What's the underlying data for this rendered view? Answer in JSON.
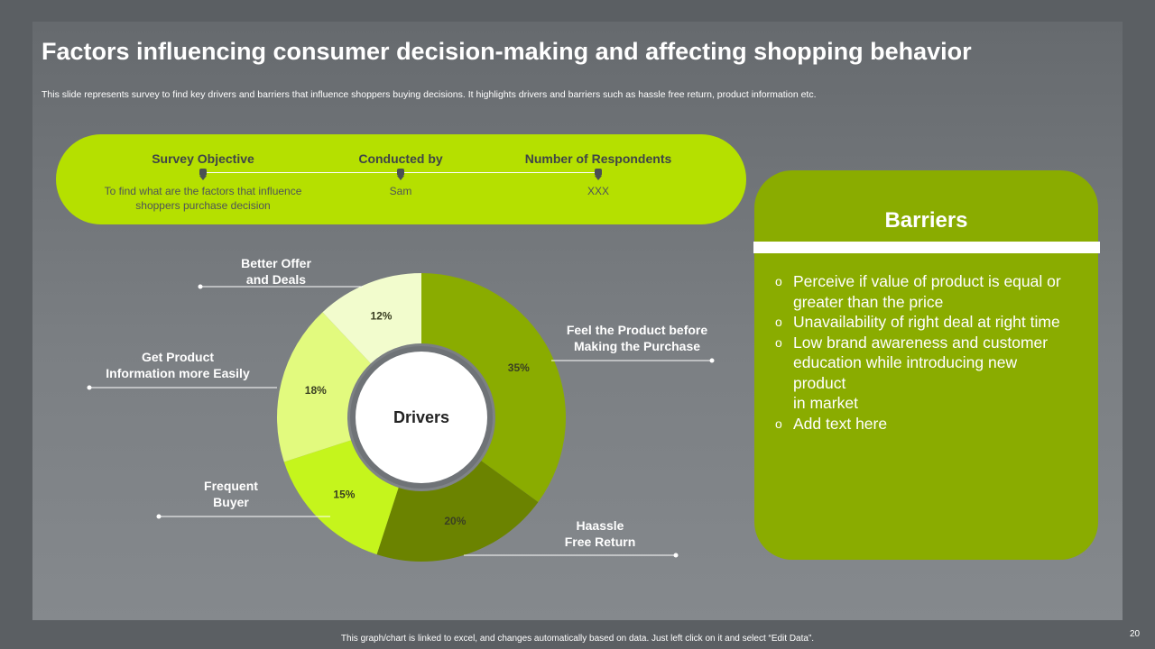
{
  "slide": {
    "title": "Factors influencing consumer decision-making and affecting shopping behavior",
    "subtitle": "This slide represents survey to find key drivers and barriers that influence shoppers buying decisions. It highlights drivers and barriers such as hassle free return, product information etc.",
    "footnote": "This graph/chart is linked to excel, and changes automatically based on data. Just left click on it and select “Edit Data”.",
    "page_number": "20"
  },
  "survey": {
    "objective_label": "Survey Objective",
    "objective_value_line1": "To find what are the factors that influence",
    "objective_value_line2": "shoppers purchase decision",
    "conducted_label": "Conducted by",
    "conducted_value": "Sam",
    "respondents_label": "Number of Respondents",
    "respondents_value": "XXX"
  },
  "chart_data": {
    "type": "pie",
    "variant": "donut",
    "title": "Drivers",
    "unit": "%",
    "slices": [
      {
        "label_lines": [
          "Feel the Product before",
          "Making the Purchase"
        ],
        "value": 35,
        "display": "35%",
        "color": "#8aac00"
      },
      {
        "label_lines": [
          "Haassle",
          "Free Return"
        ],
        "value": 20,
        "display": "20%",
        "color": "#6b8300"
      },
      {
        "label_lines": [
          "Frequent",
          "Buyer"
        ],
        "value": 15,
        "display": "15%",
        "color": "#c5f51c"
      },
      {
        "label_lines": [
          "Get Product",
          "Information more Easily"
        ],
        "value": 18,
        "display": "18%",
        "color": "#e2fa7e"
      },
      {
        "label_lines": [
          "Better Offer",
          "and Deals"
        ],
        "value": 12,
        "display": "12%",
        "color": "#f2fccd"
      }
    ]
  },
  "barriers": {
    "title": "Barriers",
    "bullet": "o",
    "items": [
      {
        "lines": [
          "Perceive if value of product is equal or",
          "greater than the price"
        ]
      },
      {
        "lines": [
          "Unavailability  of right deal at right time"
        ]
      },
      {
        "lines": [
          "Low brand awareness and customer",
          "education while introducing new",
          "product",
          "in market"
        ]
      },
      {
        "lines": [
          "Add text here"
        ]
      }
    ]
  }
}
